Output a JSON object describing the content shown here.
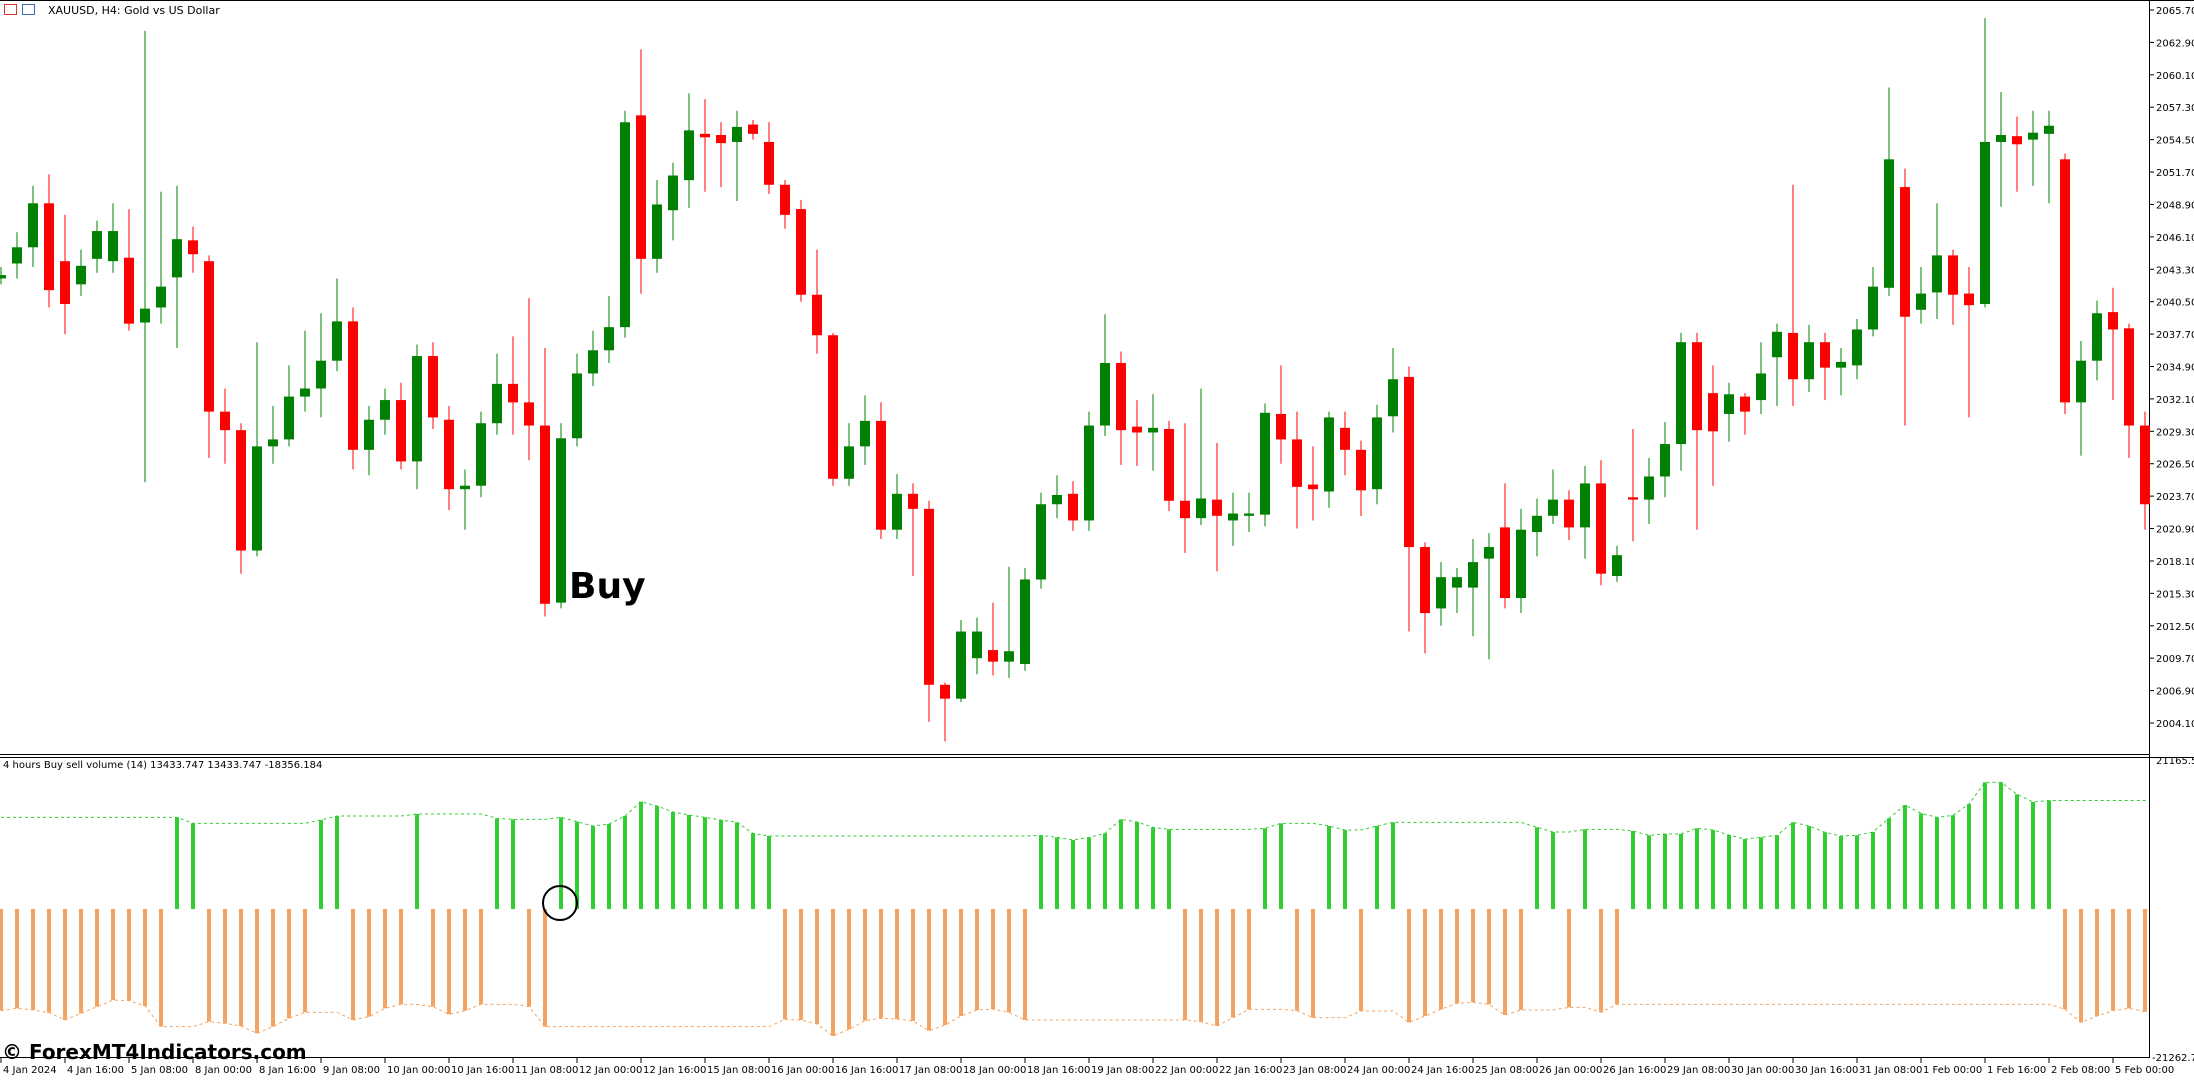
{
  "header": {
    "title": "XAUUSD, H4:  Gold vs US Dollar",
    "icons": [
      "market-watch-icon",
      "chart-window-icon"
    ]
  },
  "annotation": {
    "buy_label": "Buy",
    "marker": "circle-marker"
  },
  "watermark": "© ForexMT4Indicators.com",
  "colors": {
    "bull": "#008000",
    "bear": "#ff0000",
    "buy_volume": "#32cd32",
    "sell_volume": "#f4a460"
  },
  "price_axis": {
    "labels": [
      "2065.70",
      "2062.90",
      "2060.10",
      "2057.30",
      "2054.50",
      "2051.70",
      "2048.90",
      "2046.10",
      "2043.30",
      "2040.50",
      "2037.70",
      "2034.90",
      "2032.10",
      "2029.30",
      "2026.50",
      "2023.70",
      "2020.90",
      "2018.10",
      "2015.30",
      "2012.50",
      "2009.70",
      "2006.90",
      "2004.10"
    ]
  },
  "indicator": {
    "label": "4 hours Buy sell volume (14) 13433.747 13433.747 -18356.184",
    "axis_top": "21165.58",
    "axis_bottom": "-21262.7",
    "volume": [
      -12581,
      -12293,
      -12499,
      -12829,
      -13736,
      -12911,
      -12086,
      -11261,
      -11344,
      -12004,
      -14561,
      11344,
      10601,
      -13943,
      -14149,
      -14479,
      -15386,
      -14561,
      -13530,
      -12788,
      11014,
      11509,
      -13736,
      -13324,
      -12293,
      -11798,
      11756,
      -12086,
      -13035,
      -12581,
      -11798,
      11220,
      11096,
      -12086,
      -14561,
      11344,
      10808,
      10271,
      10519,
      11509,
      13283,
      12746,
      12004,
      11633,
      11344,
      11014,
      10725,
      9364,
      9034,
      -13654,
      -13736,
      -14231,
      -15716,
      -14891,
      -13819,
      -13530,
      -13613,
      -13860,
      -15056,
      -14355,
      -13241,
      -12499,
      -12375,
      -12788,
      -13736,
      9116,
      8869,
      8539,
      8869,
      9364,
      11096,
      10766,
      10106,
      9859,
      -13736,
      -13943,
      -14479,
      -13448,
      -12416,
      9983,
      10601,
      -12581,
      -13448,
      10271,
      9776,
      -12623,
      10271,
      10725,
      -14025,
      -13241,
      -12416,
      -11674,
      -11550,
      -11798,
      -13118,
      -12499,
      10106,
      9529,
      -12169,
      9859,
      -12788,
      -11798,
      9653,
      9116,
      9281,
      9281,
      9983,
      9776,
      9158,
      8663,
      8869,
      9116,
      10725,
      10271,
      9488,
      9034,
      9116,
      9529,
      11220,
      12870,
      11839,
      11344,
      11591,
      12994,
      15675,
      15675,
      14190,
      13241,
      13434,
      -12416,
      -14025,
      -13241,
      -12581,
      -12293,
      -12705
    ]
  },
  "time_axis": {
    "labels": [
      "4 Jan 2024",
      "4 Jan 16:00",
      "5 Jan 08:00",
      "8 Jan 00:00",
      "8 Jan 16:00",
      "9 Jan 08:00",
      "10 Jan 00:00",
      "10 Jan 16:00",
      "11 Jan 08:00",
      "12 Jan 00:00",
      "12 Jan 16:00",
      "15 Jan 08:00",
      "16 Jan 00:00",
      "16 Jan 16:00",
      "17 Jan 08:00",
      "18 Jan 00:00",
      "18 Jan 16:00",
      "19 Jan 08:00",
      "22 Jan 00:00",
      "22 Jan 16:00",
      "23 Jan 08:00",
      "24 Jan 00:00",
      "24 Jan 16:00",
      "25 Jan 08:00",
      "26 Jan 00:00",
      "26 Jan 16:00",
      "29 Jan 08:00",
      "30 Jan 00:00",
      "30 Jan 16:00",
      "31 Jan 08:00",
      "1 Feb 00:00",
      "1 Feb 16:00",
      "2 Feb 08:00",
      "5 Feb 00:00"
    ]
  },
  "chart_data": {
    "type": "candlestick",
    "symbol": "XAUUSD",
    "timeframe": "H4",
    "ylim": [
      2004.1,
      2065.7
    ],
    "ohlc": [
      [
        2042.5,
        2043.5,
        2042,
        2042.8
      ],
      [
        2043.8,
        2046.5,
        2042.5,
        2045.2
      ],
      [
        2045.2,
        2050.5,
        2043.5,
        2049.0
      ],
      [
        2049.0,
        2051.5,
        2040,
        2041.5
      ],
      [
        2044,
        2048,
        2037.7,
        2040.3
      ],
      [
        2042,
        2045,
        2041,
        2043.6
      ],
      [
        2044.2,
        2047.5,
        2043,
        2046.6
      ],
      [
        2044,
        2049,
        2043,
        2046.6
      ],
      [
        2044.3,
        2048.5,
        2038,
        2038.6
      ],
      [
        2038.7,
        2063.9,
        2024.9,
        2039.9
      ],
      [
        2040,
        2050,
        2038.6,
        2041.8
      ],
      [
        2042.6,
        2050.5,
        2036.5,
        2045.9
      ],
      [
        2045.8,
        2047,
        2043,
        2044.6
      ],
      [
        2044,
        2044.5,
        2027,
        2031
      ],
      [
        2031,
        2033,
        2026.5,
        2029.4
      ],
      [
        2029.4,
        2030,
        2017,
        2019
      ],
      [
        2019,
        2037,
        2018.5,
        2028
      ],
      [
        2028,
        2031.5,
        2026.5,
        2028.6
      ],
      [
        2028.6,
        2035,
        2028,
        2032.3
      ],
      [
        2032.3,
        2038,
        2031,
        2033
      ],
      [
        2033,
        2039.5,
        2030.5,
        2035.4
      ],
      [
        2035.4,
        2042.5,
        2034.5,
        2038.8
      ],
      [
        2038.8,
        2040,
        2026,
        2027.7
      ],
      [
        2027.7,
        2031.5,
        2025.5,
        2030.3
      ],
      [
        2030.3,
        2033,
        2029,
        2032
      ],
      [
        2032,
        2033.5,
        2026,
        2026.7
      ],
      [
        2026.7,
        2036.8,
        2024.3,
        2035.8
      ],
      [
        2035.8,
        2037,
        2029.5,
        2030.5
      ],
      [
        2030.3,
        2031.5,
        2022.5,
        2024.3
      ],
      [
        2024.3,
        2026,
        2020.8,
        2024.6
      ],
      [
        2024.6,
        2031,
        2023.6,
        2030
      ],
      [
        2030,
        2036,
        2029,
        2033.4
      ],
      [
        2033.4,
        2037.5,
        2029,
        2031.8
      ],
      [
        2031.8,
        2040.8,
        2026.8,
        2029.8
      ],
      [
        2029.8,
        2036.5,
        2013.3,
        2014.4
      ],
      [
        2014.5,
        2030,
        2014,
        2028.7
      ],
      [
        2028.7,
        2036,
        2028,
        2034.3
      ],
      [
        2034.3,
        2038,
        2033.2,
        2036.3
      ],
      [
        2036.3,
        2041,
        2035.2,
        2038.3
      ],
      [
        2038.3,
        2057,
        2037.4,
        2056
      ],
      [
        2056.6,
        2062.3,
        2041.2,
        2044.2
      ],
      [
        2044.2,
        2051,
        2043,
        2048.9
      ],
      [
        2048.4,
        2052.5,
        2045.8,
        2051.4
      ],
      [
        2051,
        2058.5,
        2048.6,
        2055.3
      ],
      [
        2055,
        2058,
        2050,
        2054.7
      ],
      [
        2054.9,
        2056,
        2050.4,
        2054.2
      ],
      [
        2054.3,
        2057,
        2049.2,
        2055.6
      ],
      [
        2055.8,
        2056.2,
        2054.5,
        2055
      ],
      [
        2054.3,
        2056,
        2049.8,
        2050.6
      ],
      [
        2050.6,
        2051,
        2046.8,
        2048
      ],
      [
        2048.5,
        2049.3,
        2040.5,
        2041.1
      ],
      [
        2041.1,
        2045,
        2036,
        2037.6
      ],
      [
        2037.6,
        2037.8,
        2024.6,
        2025.2
      ],
      [
        2025.2,
        2030,
        2024.6,
        2028
      ],
      [
        2028,
        2032.4,
        2026.4,
        2030.2
      ],
      [
        2030.2,
        2031.8,
        2020,
        2020.8
      ],
      [
        2020.8,
        2025.6,
        2020,
        2023.9
      ],
      [
        2023.9,
        2024.8,
        2016.8,
        2022.6
      ],
      [
        2022.6,
        2023.3,
        2004.2,
        2007.4
      ],
      [
        2007.4,
        2007.6,
        2002.5,
        2006.2
      ],
      [
        2006.2,
        2013,
        2005.9,
        2012
      ],
      [
        2009.7,
        2013.2,
        2008.3,
        2012
      ],
      [
        2010.4,
        2014.5,
        2008.2,
        2009.4
      ],
      [
        2009.4,
        2017.6,
        2008,
        2010.3
      ],
      [
        2009.2,
        2017.5,
        2008.6,
        2016.5
      ],
      [
        2016.5,
        2024,
        2015.7,
        2023
      ],
      [
        2023,
        2025.5,
        2021.8,
        2023.8
      ],
      [
        2023.9,
        2025,
        2020.7,
        2021.6
      ],
      [
        2021.6,
        2031,
        2020.7,
        2029.8
      ],
      [
        2029.8,
        2039.4,
        2028.9,
        2035.2
      ],
      [
        2035.2,
        2036.2,
        2026.4,
        2029.4
      ],
      [
        2029.7,
        2032,
        2026.3,
        2029.2
      ],
      [
        2029.2,
        2032.5,
        2025.9,
        2029.6
      ],
      [
        2029.5,
        2030.2,
        2022.4,
        2023.3
      ],
      [
        2023.3,
        2030,
        2018.8,
        2021.8
      ],
      [
        2021.8,
        2033,
        2021.2,
        2023.5
      ],
      [
        2023.4,
        2028.3,
        2017.2,
        2022
      ],
      [
        2021.6,
        2024,
        2019.4,
        2022.2
      ],
      [
        2022,
        2024,
        2020.6,
        2022.2
      ],
      [
        2022.1,
        2031.7,
        2021.1,
        2030.9
      ],
      [
        2030.8,
        2035,
        2026.5,
        2028.6
      ],
      [
        2028.6,
        2031,
        2020.9,
        2024.5
      ],
      [
        2024.7,
        2028,
        2021.6,
        2024.3
      ],
      [
        2024.1,
        2031,
        2022.7,
        2030.5
      ],
      [
        2029.6,
        2031,
        2025.5,
        2027.7
      ],
      [
        2027.7,
        2028.5,
        2022,
        2024.2
      ],
      [
        2024.3,
        2031.6,
        2023,
        2030.5
      ],
      [
        2030.6,
        2036.5,
        2029.2,
        2033.8
      ],
      [
        2034,
        2034.9,
        2012,
        2019.3
      ],
      [
        2019.3,
        2019.7,
        2010.1,
        2013.6
      ],
      [
        2014,
        2018,
        2012.5,
        2016.7
      ],
      [
        2015.8,
        2017.5,
        2013.6,
        2016.7
      ],
      [
        2015.8,
        2020,
        2011.6,
        2018
      ],
      [
        2018.3,
        2020.5,
        2009.6,
        2019.3
      ],
      [
        2021,
        2024.8,
        2014,
        2014.9
      ],
      [
        2014.9,
        2022.6,
        2013.6,
        2020.8
      ],
      [
        2020.6,
        2023.5,
        2018.5,
        2022
      ],
      [
        2022,
        2026,
        2021.3,
        2023.4
      ],
      [
        2023.4,
        2024.2,
        2019.9,
        2021
      ],
      [
        2021,
        2026.3,
        2018.3,
        2024.8
      ],
      [
        2024.8,
        2026.8,
        2016,
        2017
      ],
      [
        2016.8,
        2019.4,
        2016.3,
        2018.6
      ],
      [
        2023.6,
        2029.5,
        2019.8,
        2023.4
      ],
      [
        2023.4,
        2027,
        2021.3,
        2025.4
      ],
      [
        2025.4,
        2030.1,
        2023.6,
        2028.2
      ],
      [
        2028.2,
        2037.8,
        2025.9,
        2037
      ],
      [
        2037,
        2037.8,
        2020.8,
        2029.4
      ],
      [
        2032.6,
        2035,
        2024.6,
        2029.3
      ],
      [
        2030.8,
        2033.5,
        2028.4,
        2032.5
      ],
      [
        2032.3,
        2032.6,
        2029,
        2031
      ],
      [
        2032,
        2037,
        2030.8,
        2034.3
      ],
      [
        2035.7,
        2038.6,
        2031.5,
        2037.9
      ],
      [
        2037.8,
        2050.6,
        2031.5,
        2033.8
      ],
      [
        2033.8,
        2038.5,
        2032.7,
        2037
      ],
      [
        2037,
        2037.8,
        2032,
        2034.8
      ],
      [
        2034.8,
        2036.5,
        2032.4,
        2035.3
      ],
      [
        2035,
        2039,
        2033.8,
        2038.1
      ],
      [
        2038.1,
        2043.5,
        2037.5,
        2041.8
      ],
      [
        2041.7,
        2059,
        2041,
        2052.8
      ],
      [
        2050.4,
        2052,
        2029.8,
        2039.2
      ],
      [
        2039.8,
        2043.5,
        2038.6,
        2041.2
      ],
      [
        2041.3,
        2049,
        2039,
        2044.5
      ],
      [
        2044.5,
        2045,
        2038.5,
        2041.1
      ],
      [
        2041.2,
        2043.5,
        2030.5,
        2040.2
      ],
      [
        2040.3,
        2065,
        2040,
        2054.3
      ],
      [
        2054.3,
        2058.6,
        2048.7,
        2054.9
      ],
      [
        2054.8,
        2056.5,
        2050,
        2054.1
      ],
      [
        2054.5,
        2057,
        2050.5,
        2055.1
      ],
      [
        2055,
        2057,
        2049,
        2055.7
      ],
      [
        2052.8,
        2053.3,
        2030.8,
        2031.8
      ],
      [
        2031.8,
        2037.1,
        2027.2,
        2035.4
      ],
      [
        2035.4,
        2040.6,
        2033.7,
        2039.5
      ],
      [
        2039.6,
        2041.7,
        2032,
        2038.1
      ],
      [
        2038.2,
        2038.6,
        2027,
        2029.8
      ],
      [
        2029.8,
        2031,
        2020.8,
        2023
      ]
    ]
  }
}
